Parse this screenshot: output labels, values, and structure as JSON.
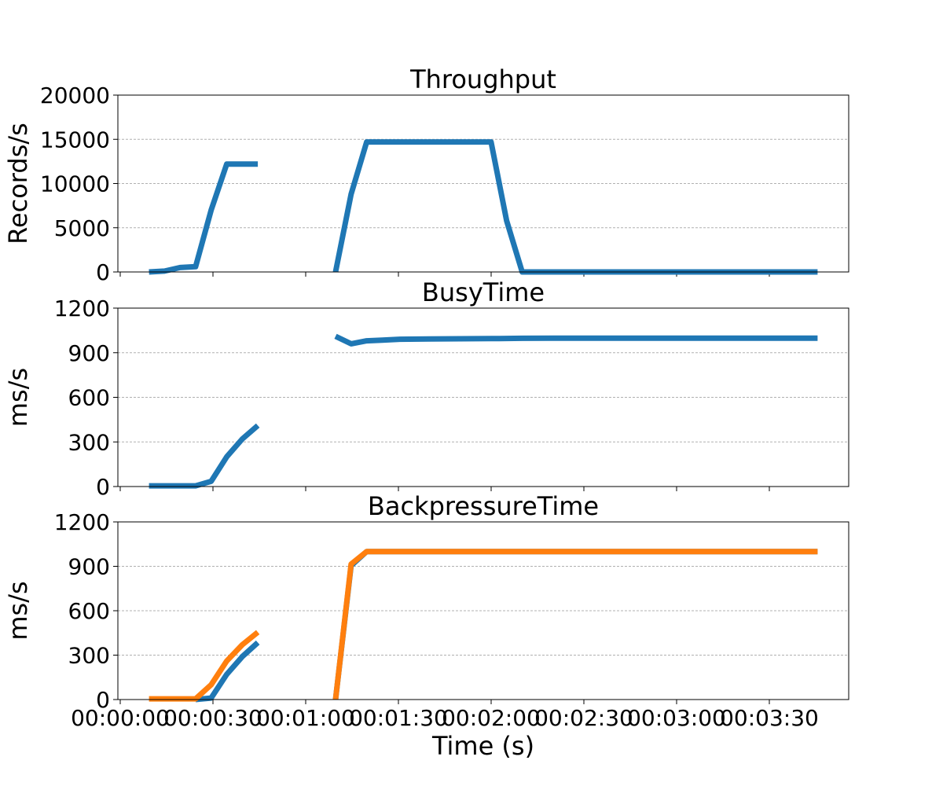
{
  "xlabel": "Time (s)",
  "x_tick_labels": [
    "00:00:00",
    "00:00:30",
    "00:01:00",
    "00:01:30",
    "00:02:00",
    "00:02:30",
    "00:03:00",
    "00:03:30"
  ],
  "colors": {
    "series_blue": "#1f77b4",
    "series_orange": "#ff7f0e",
    "grid": "#b0b0b0"
  },
  "chart_data": [
    {
      "type": "line",
      "title": "Throughput",
      "ylabel": "Records/s",
      "xlabel": "",
      "ylim": [
        0,
        20000
      ],
      "yticks": [
        0,
        5000,
        10000,
        15000,
        20000
      ],
      "xlim": [
        -10,
        225
      ],
      "grid": "y-dashed",
      "series": [
        {
          "color_key": "series_blue",
          "segments": [
            {
              "x": [
                0,
                5,
                10,
                15,
                20,
                25,
                30,
                35
              ],
              "y": [
                0,
                100,
                500,
                600,
                7000,
                12200,
                12200,
                12200
              ]
            },
            {
              "x": [
                60,
                65,
                70,
                75,
                80,
                85,
                90,
                95,
                100,
                105,
                110,
                115,
                120,
                125,
                130,
                135,
                140,
                145,
                150,
                155,
                160,
                165,
                170,
                175,
                180,
                185,
                190,
                195,
                200,
                205,
                210,
                215
              ],
              "y": [
                0,
                8800,
                14700,
                14700,
                14700,
                14700,
                14700,
                14700,
                14700,
                14700,
                14700,
                5800,
                0,
                0,
                0,
                0,
                0,
                0,
                0,
                0,
                0,
                0,
                0,
                0,
                0,
                0,
                0,
                0,
                0,
                0,
                0,
                0
              ]
            }
          ]
        }
      ]
    },
    {
      "type": "line",
      "title": "BusyTime",
      "ylabel": "ms/s",
      "xlabel": "",
      "ylim": [
        0,
        1200
      ],
      "yticks": [
        0,
        300,
        600,
        900,
        1200
      ],
      "xlim": [
        -10,
        225
      ],
      "grid": "y-dashed",
      "series": [
        {
          "color_key": "series_blue",
          "segments": [
            {
              "x": [
                0,
                5,
                10,
                15,
                20,
                25,
                30,
                35
              ],
              "y": [
                5,
                5,
                5,
                5,
                35,
                200,
                320,
                410
              ]
            },
            {
              "x": [
                60,
                65,
                70,
                75,
                80,
                90,
                100,
                110,
                120,
                130,
                150,
                170,
                190,
                215
              ],
              "y": [
                1010,
                960,
                980,
                985,
                990,
                992,
                994,
                995,
                997,
                998,
                998,
                998,
                998,
                998
              ]
            }
          ]
        }
      ]
    },
    {
      "type": "line",
      "title": "BackpressureTime",
      "ylabel": "ms/s",
      "xlabel": "Time (s)",
      "ylim": [
        0,
        1200
      ],
      "yticks": [
        0,
        300,
        600,
        900,
        1200
      ],
      "xlim": [
        -10,
        225
      ],
      "grid": "y-dashed",
      "series": [
        {
          "color_key": "series_blue",
          "segments": [
            {
              "x": [
                15,
                20,
                25,
                30,
                35
              ],
              "y": [
                0,
                10,
                170,
                290,
                385
              ]
            },
            {
              "x": [
                60,
                65,
                70,
                75,
                80,
                100,
                120,
                140,
                160,
                180,
                200,
                215
              ],
              "y": [
                0,
                905,
                1000,
                1000,
                1000,
                1000,
                1000,
                1000,
                1000,
                1000,
                1000,
                1000
              ]
            }
          ]
        },
        {
          "color_key": "series_orange",
          "segments": [
            {
              "x": [
                0,
                5,
                10,
                15,
                20,
                25,
                30,
                35
              ],
              "y": [
                5,
                5,
                5,
                5,
                100,
                260,
                370,
                455
              ]
            },
            {
              "x": [
                60,
                65,
                70,
                75,
                80,
                100,
                120,
                140,
                160,
                180,
                200,
                215
              ],
              "y": [
                0,
                915,
                1000,
                1000,
                1000,
                1000,
                1000,
                1000,
                1000,
                1000,
                1000,
                1000
              ]
            }
          ]
        }
      ]
    }
  ]
}
